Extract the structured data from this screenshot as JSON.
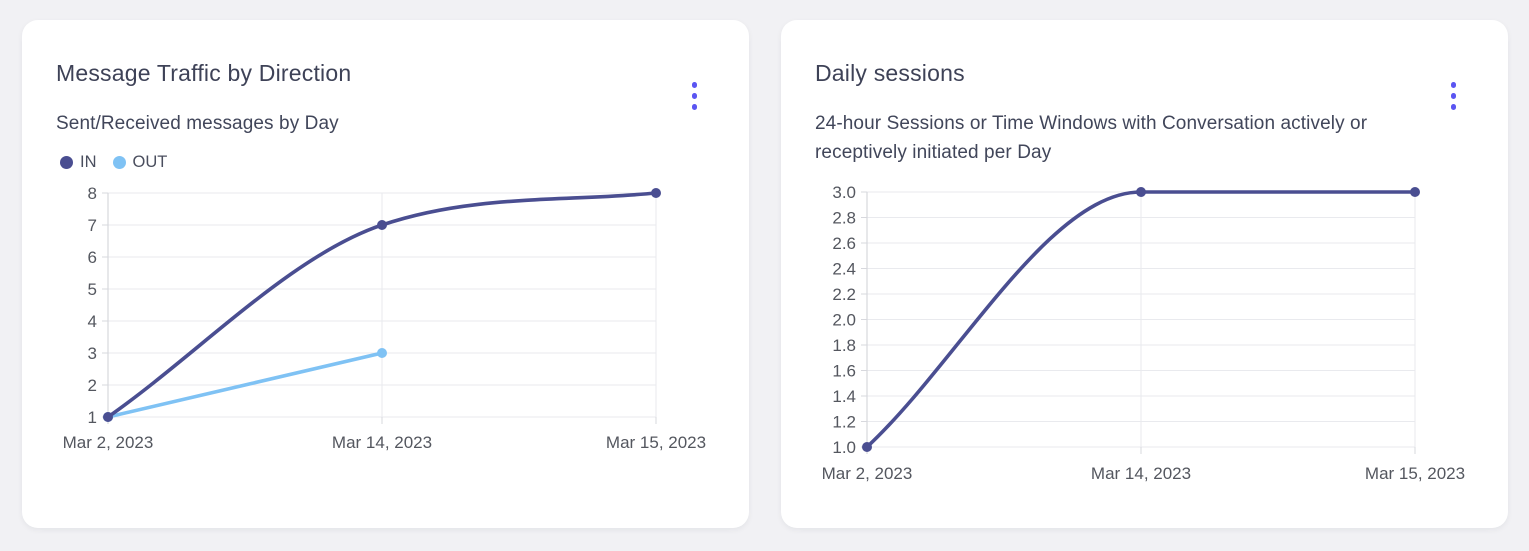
{
  "page": {
    "background": "#f1f1f4"
  },
  "colors": {
    "accent": "#5b55f2",
    "grid": "#e9eaee",
    "axis": "#d7d8dd",
    "tick_text": "#54575f"
  },
  "cards": [
    {
      "title": "Message Traffic by Direction",
      "subtitle": "Sent/Received messages by Day",
      "menu_icon": "kebab-menu-icon"
    },
    {
      "title": "Daily sessions",
      "subtitle": "24-hour Sessions or Time Windows with Conversation actively or receptively initiated per Day",
      "menu_icon": "kebab-menu-icon"
    }
  ],
  "chart_data": [
    {
      "type": "line",
      "title": "Message Traffic by Direction",
      "subtitle": "Sent/Received messages by Day",
      "x": [
        "Mar 2, 2023",
        "Mar 14, 2023",
        "Mar 15, 2023"
      ],
      "series": [
        {
          "name": "IN",
          "color": "#4a4e91",
          "values": [
            1,
            7,
            8
          ]
        },
        {
          "name": "OUT",
          "color": "#7fc2f4",
          "values": [
            1,
            3,
            null
          ]
        }
      ],
      "xlabel": "",
      "ylabel": "",
      "ylim": [
        1,
        8
      ],
      "yticks": [
        1,
        2,
        3,
        4,
        5,
        6,
        7,
        8
      ],
      "ytick_labels": [
        "1",
        "2",
        "3",
        "4",
        "5",
        "6",
        "7",
        "8"
      ],
      "grid": true,
      "curve": "smooth",
      "legend_position": "top-left"
    },
    {
      "type": "line",
      "title": "Daily sessions",
      "subtitle": "24-hour Sessions or Time Windows with Conversation actively or receptively initiated per Day",
      "x": [
        "Mar 2, 2023",
        "Mar 14, 2023",
        "Mar 15, 2023"
      ],
      "series": [
        {
          "name": "Daily sessions",
          "color": "#4a4e91",
          "values": [
            1.0,
            3.0,
            3.0
          ]
        }
      ],
      "xlabel": "",
      "ylabel": "",
      "ylim": [
        1.0,
        3.0
      ],
      "yticks": [
        1.0,
        1.2,
        1.4,
        1.6,
        1.8,
        2.0,
        2.2,
        2.4,
        2.6,
        2.8,
        3.0
      ],
      "ytick_labels": [
        "1.0",
        "1.2",
        "1.4",
        "1.6",
        "1.8",
        "2.0",
        "2.2",
        "2.4",
        "2.6",
        "2.8",
        "3.0"
      ],
      "grid": true,
      "curve": "smooth",
      "legend_position": "none"
    }
  ]
}
